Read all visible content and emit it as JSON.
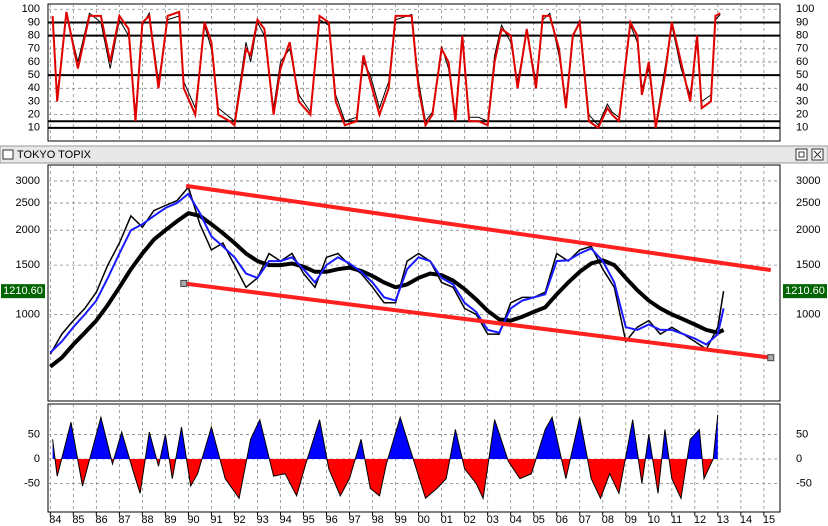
{
  "chart_data": [
    {
      "type": "line",
      "xlim": [
        1983.9,
        2015.7
      ],
      "ylim": [
        0,
        104
      ],
      "yticks": [
        10,
        20,
        30,
        40,
        50,
        60,
        70,
        80,
        90,
        100
      ],
      "ref_lines": [
        90,
        80,
        50,
        15,
        10
      ],
      "grid": true,
      "x": [
        1984.1,
        1984.3,
        1984.7,
        1985.2,
        1985.7,
        1986.2,
        1986.6,
        1987.0,
        1987.4,
        1987.7,
        1988.0,
        1988.3,
        1988.7,
        1989.1,
        1989.6,
        1989.8,
        1990.3,
        1990.7,
        1991.0,
        1991.3,
        1991.8,
        1992.0,
        1992.5,
        1992.7,
        1993.0,
        1993.3,
        1993.7,
        1994.0,
        1994.4,
        1994.8,
        1995.3,
        1995.7,
        1996.1,
        1996.4,
        1996.8,
        1997.3,
        1997.6,
        1997.9,
        1998.3,
        1998.7,
        1999.0,
        1999.7,
        2000.0,
        2000.3,
        2000.6,
        2001.0,
        2001.3,
        2001.6,
        2001.9,
        2002.2,
        2002.6,
        2003.0,
        2003.3,
        2003.6,
        2004.0,
        2004.3,
        2004.7,
        2005.1,
        2005.4,
        2005.7,
        2006.1,
        2006.4,
        2006.7,
        2007.0,
        2007.4,
        2007.8,
        2008.2,
        2008.4,
        2008.7,
        2009.2,
        2009.5,
        2009.7,
        2010.0,
        2010.3,
        2010.7,
        2011.0,
        2011.4,
        2011.8,
        2012.1,
        2012.3,
        2012.7,
        2012.9,
        2013.1
      ],
      "series": [
        {
          "color": "#000000",
          "width": 1,
          "values": [
            92,
            35,
            96,
            60,
            97,
            90,
            55,
            92,
            80,
            20,
            88,
            97,
            45,
            92,
            95,
            45,
            25,
            88,
            70,
            25,
            18,
            15,
            75,
            60,
            90,
            80,
            25,
            60,
            70,
            35,
            22,
            92,
            88,
            35,
            15,
            18,
            60,
            50,
            25,
            45,
            92,
            96,
            45,
            15,
            22,
            72,
            55,
            20,
            78,
            18,
            18,
            15,
            65,
            88,
            75,
            45,
            82,
            45,
            92,
            97,
            65,
            30,
            78,
            92,
            20,
            12,
            28,
            22,
            18,
            88,
            75,
            40,
            55,
            12,
            55,
            88,
            55,
            35,
            75,
            30,
            35,
            92,
            96
          ]
        },
        {
          "color": "#e00000",
          "width": 2,
          "values": [
            95,
            30,
            98,
            55,
            95,
            95,
            60,
            95,
            85,
            15,
            90,
            95,
            40,
            95,
            98,
            40,
            20,
            90,
            75,
            20,
            15,
            12,
            70,
            65,
            92,
            85,
            20,
            55,
            75,
            30,
            20,
            95,
            90,
            30,
            12,
            15,
            65,
            45,
            20,
            40,
            95,
            95,
            40,
            12,
            20,
            70,
            60,
            15,
            80,
            15,
            15,
            12,
            60,
            85,
            80,
            40,
            85,
            40,
            95,
            95,
            70,
            25,
            80,
            90,
            15,
            10,
            25,
            20,
            15,
            90,
            80,
            35,
            60,
            10,
            50,
            90,
            60,
            30,
            80,
            25,
            30,
            95,
            97
          ]
        }
      ]
    },
    {
      "type": "line",
      "title": "TOKYO TOPIX",
      "log_y": true,
      "xlim": [
        1983.9,
        2015.7
      ],
      "ylim": [
        490,
        3420
      ],
      "yticks": [
        1000,
        1500,
        2000,
        2500,
        3000
      ],
      "grid": true,
      "price_label": "1210.60",
      "x": [
        1984,
        1984.5,
        1985,
        1985.5,
        1986,
        1986.5,
        1987,
        1987.5,
        1988,
        1988.5,
        1989,
        1989.5,
        1990,
        1990.5,
        1991,
        1991.5,
        1992,
        1992.5,
        1993,
        1993.5,
        1994,
        1994.5,
        1995,
        1995.5,
        1996,
        1996.5,
        1997,
        1997.5,
        1998,
        1998.5,
        1999,
        1999.5,
        2000,
        2000.5,
        2001,
        2001.5,
        2002,
        2002.5,
        2003,
        2003.5,
        2004,
        2004.5,
        2005,
        2005.5,
        2006,
        2006.5,
        2007,
        2007.5,
        2008,
        2008.5,
        2009,
        2009.5,
        2010,
        2010.5,
        2011,
        2011.5,
        2012,
        2012.5,
        2013,
        2013.25
      ],
      "series": [
        {
          "color": "#000000",
          "width": 4,
          "values": [
            650,
            700,
            780,
            860,
            950,
            1080,
            1250,
            1450,
            1650,
            1850,
            2000,
            2150,
            2300,
            2250,
            2100,
            1950,
            1800,
            1650,
            1550,
            1500,
            1500,
            1520,
            1480,
            1420,
            1420,
            1450,
            1470,
            1430,
            1370,
            1300,
            1250,
            1280,
            1350,
            1400,
            1380,
            1320,
            1230,
            1130,
            1030,
            960,
            950,
            980,
            1020,
            1060,
            1180,
            1300,
            1420,
            1520,
            1560,
            1500,
            1350,
            1220,
            1120,
            1050,
            1000,
            960,
            920,
            880,
            860,
            880
          ]
        },
        {
          "color": "#000000",
          "width": 1.5,
          "values": [
            720,
            850,
            950,
            1050,
            1200,
            1500,
            1800,
            2250,
            2050,
            2350,
            2450,
            2550,
            2850,
            2100,
            1700,
            1800,
            1500,
            1250,
            1350,
            1650,
            1550,
            1650,
            1400,
            1250,
            1600,
            1650,
            1500,
            1400,
            1250,
            1100,
            1100,
            1550,
            1650,
            1550,
            1300,
            1250,
            1050,
            1000,
            850,
            850,
            1100,
            1150,
            1150,
            1200,
            1650,
            1550,
            1700,
            1750,
            1450,
            1250,
            800,
            900,
            950,
            850,
            900,
            850,
            800,
            750,
            900,
            1210.6
          ]
        },
        {
          "color": "#1a1aff",
          "width": 2,
          "values": [
            730,
            800,
            900,
            1000,
            1120,
            1350,
            1650,
            2000,
            2100,
            2250,
            2400,
            2500,
            2700,
            2300,
            1900,
            1750,
            1600,
            1400,
            1350,
            1550,
            1550,
            1600,
            1450,
            1300,
            1500,
            1600,
            1520,
            1420,
            1300,
            1150,
            1120,
            1450,
            1600,
            1550,
            1350,
            1280,
            1100,
            1020,
            880,
            860,
            1050,
            1120,
            1150,
            1180,
            1550,
            1560,
            1650,
            1720,
            1550,
            1300,
            900,
            880,
            920,
            880,
            880,
            850,
            820,
            780,
            850,
            1050
          ]
        }
      ],
      "trend_lines": [
        {
          "color": "#ff2020",
          "x": [
            1989.9,
            2015.3
          ],
          "y": [
            2880,
            1440
          ]
        },
        {
          "color": "#ff2020",
          "x": [
            1989.8,
            2015.3
          ],
          "y": [
            1290,
            700
          ]
        }
      ]
    },
    {
      "type": "area",
      "xlim": [
        1983.9,
        2015.7
      ],
      "ylim": [
        -108,
        112
      ],
      "yticks": [
        -50,
        0,
        50
      ],
      "grid": true,
      "colors": {
        "positive": "#0000ff",
        "negative": "#ff0000"
      },
      "x": [
        1984.1,
        1984.3,
        1984.9,
        1985.4,
        1986.2,
        1986.7,
        1987.1,
        1987.6,
        1987.9,
        1988.3,
        1988.7,
        1989.0,
        1989.3,
        1989.7,
        1990.1,
        1990.4,
        1991.0,
        1991.6,
        1992.2,
        1992.7,
        1993.1,
        1993.7,
        1994.2,
        1994.7,
        1995.1,
        1995.7,
        1996.1,
        1996.6,
        1997.0,
        1997.5,
        1997.9,
        1998.3,
        1998.6,
        1999.2,
        1999.7,
        2000.3,
        2000.8,
        2001.2,
        2001.6,
        2002.0,
        2002.5,
        2002.8,
        2003.3,
        2003.9,
        2004.4,
        2004.9,
        2005.5,
        2005.8,
        2006.4,
        2007.0,
        2007.5,
        2007.9,
        2008.3,
        2008.7,
        2009.3,
        2009.7,
        2010.0,
        2010.4,
        2010.7,
        2011.0,
        2011.4,
        2011.8,
        2012.2,
        2012.4,
        2012.8,
        2013.0
      ],
      "values": [
        40,
        -35,
        75,
        -55,
        85,
        -10,
        55,
        -25,
        -70,
        55,
        -15,
        50,
        -40,
        65,
        -55,
        -30,
        65,
        -40,
        -80,
        40,
        80,
        -35,
        -30,
        -75,
        -10,
        80,
        -20,
        -75,
        -40,
        40,
        -60,
        -75,
        -10,
        85,
        10,
        -80,
        -60,
        -40,
        60,
        -20,
        -50,
        -80,
        80,
        -5,
        -40,
        -30,
        60,
        85,
        -40,
        85,
        -40,
        -80,
        -30,
        -70,
        80,
        -50,
        50,
        -70,
        60,
        -40,
        -80,
        40,
        60,
        -40,
        0,
        90
      ],
      "xticks": [
        {
          "value": 1984,
          "label": "84"
        },
        {
          "value": 1985,
          "label": "85"
        },
        {
          "value": 1986,
          "label": "86"
        },
        {
          "value": 1987,
          "label": "87"
        },
        {
          "value": 1988,
          "label": "88"
        },
        {
          "value": 1989,
          "label": "89"
        },
        {
          "value": 1990,
          "label": "90"
        },
        {
          "value": 1991,
          "label": "91"
        },
        {
          "value": 1992,
          "label": "92"
        },
        {
          "value": 1993,
          "label": "93"
        },
        {
          "value": 1994,
          "label": "94"
        },
        {
          "value": 1995,
          "label": "95"
        },
        {
          "value": 1996,
          "label": "96"
        },
        {
          "value": 1997,
          "label": "97"
        },
        {
          "value": 1998,
          "label": "98"
        },
        {
          "value": 1999,
          "label": "99"
        },
        {
          "value": 2000,
          "label": "00"
        },
        {
          "value": 2001,
          "label": "01"
        },
        {
          "value": 2002,
          "label": "02"
        },
        {
          "value": 2003,
          "label": "03"
        },
        {
          "value": 2004,
          "label": "04"
        },
        {
          "value": 2005,
          "label": "05"
        },
        {
          "value": 2006,
          "label": "06"
        },
        {
          "value": 2007,
          "label": "07"
        },
        {
          "value": 2008,
          "label": "08"
        },
        {
          "value": 2009,
          "label": "09"
        },
        {
          "value": 2010,
          "label": "10"
        },
        {
          "value": 2011,
          "label": "11"
        },
        {
          "value": 2012,
          "label": "12"
        },
        {
          "value": 2013,
          "label": "13"
        },
        {
          "value": 2014,
          "label": "14"
        },
        {
          "value": 2015,
          "label": "15"
        }
      ]
    }
  ]
}
